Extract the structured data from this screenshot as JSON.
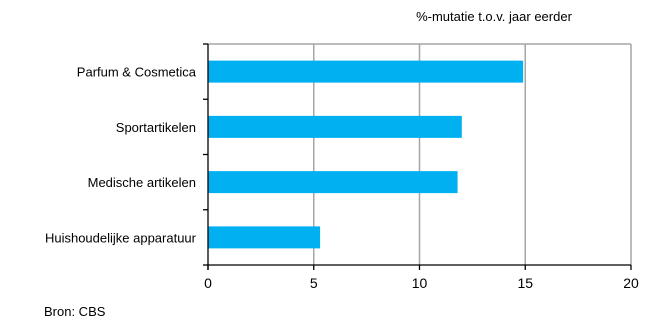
{
  "chart_data": {
    "type": "bar",
    "orientation": "horizontal",
    "title": "%-mutatie t.o.v. jaar eerder",
    "categories": [
      "Parfum & Cosmetica",
      "Sportartikelen",
      "Medische artikelen",
      "Huishoudelijke apparatuur"
    ],
    "values": [
      14.9,
      12.0,
      11.8,
      5.3
    ],
    "xlim": [
      0,
      20
    ],
    "xticks": [
      0,
      5,
      10,
      15,
      20
    ],
    "grid": true,
    "bar_color": "#00b0f0",
    "grid_color": "#a6a6a6",
    "source": "Bron: CBS"
  }
}
